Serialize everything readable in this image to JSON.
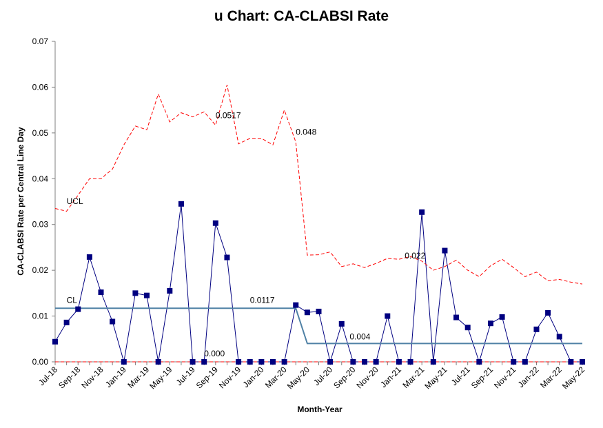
{
  "chart_data": {
    "type": "line",
    "title": "u Chart: CA-CLABSI Rate",
    "xlabel": "Month-Year",
    "ylabel": "CA-CLABSI Rate per Central Line Day",
    "ylim": [
      0,
      0.07
    ],
    "yticks": [
      "0.00",
      "0.01",
      "0.02",
      "0.03",
      "0.04",
      "0.05",
      "0.06",
      "0.07"
    ],
    "ytick_values": [
      0,
      0.01,
      0.02,
      0.03,
      0.04,
      0.05,
      0.06,
      0.07
    ],
    "categories": [
      "Jul-18",
      "Aug-18",
      "Sep-18",
      "Oct-18",
      "Nov-18",
      "Dec-18",
      "Jan-19",
      "Feb-19",
      "Mar-19",
      "Apr-19",
      "May-19",
      "Jun-19",
      "Jul-19",
      "Aug-19",
      "Sep-19",
      "Oct-19",
      "Nov-19",
      "Dec-19",
      "Jan-20",
      "Feb-20",
      "Mar-20",
      "Apr-20",
      "May-20",
      "Jun-20",
      "Jul-20",
      "Aug-20",
      "Sep-20",
      "Oct-20",
      "Nov-20",
      "Dec-20",
      "Jan-21",
      "Feb-21",
      "Mar-21",
      "Apr-21",
      "May-21",
      "Jun-21",
      "Jul-21",
      "Aug-21",
      "Sep-21",
      "Oct-21",
      "Nov-21",
      "Dec-21",
      "Jan-22",
      "Feb-22",
      "Mar-22",
      "Apr-22",
      "May-22"
    ],
    "tick_labels": [
      "Jul-18",
      "Sep-18",
      "Nov-18",
      "Jan-19",
      "Mar-19",
      "May-19",
      "Jul-19",
      "Sep-19",
      "Nov-19",
      "Jan-20",
      "Mar-20",
      "May-20",
      "Jul-20",
      "Sep-20",
      "Nov-20",
      "Jan-21",
      "Mar-21",
      "May-21",
      "Jul-21",
      "Sep-21",
      "Nov-21",
      "Jan-22",
      "Mar-22",
      "May-22"
    ],
    "series": [
      {
        "role": "rate",
        "color": "#000080",
        "values": [
          0.0044,
          0.0086,
          0.0115,
          0.0229,
          0.0152,
          0.0088,
          0.0,
          0.015,
          0.0145,
          0.0,
          0.0155,
          0.0345,
          0.0,
          0.0,
          0.0303,
          0.0228,
          0.0,
          0.0,
          0.0,
          0.0,
          0.0,
          0.0124,
          0.0108,
          0.011,
          0.0,
          0.0083,
          0.0,
          0.0,
          0.0,
          0.01,
          0.0,
          0.0,
          0.0327,
          0.0,
          0.0243,
          0.0097,
          0.0075,
          0.0,
          0.0084,
          0.0098,
          0.0,
          0.0,
          0.0071,
          0.0107,
          0.0055,
          0.0,
          0.0
        ]
      },
      {
        "role": "ucl",
        "name": "UCL",
        "color": "#ff0000",
        "values": [
          0.0335,
          0.0329,
          0.0364,
          0.04,
          0.04,
          0.0421,
          0.0474,
          0.0515,
          0.0507,
          0.0585,
          0.0524,
          0.0544,
          0.0535,
          0.0546,
          0.0517,
          0.0605,
          0.0476,
          0.0488,
          0.0488,
          0.0474,
          0.055,
          0.048,
          0.0233,
          0.0234,
          0.024,
          0.0208,
          0.0214,
          0.0206,
          0.0215,
          0.0226,
          0.0224,
          0.023,
          0.022,
          0.02,
          0.0208,
          0.0222,
          0.02,
          0.0186,
          0.021,
          0.0224,
          0.0206,
          0.0186,
          0.0196,
          0.0177,
          0.018,
          0.0174,
          0.017
        ]
      },
      {
        "role": "lcl",
        "color": "#ff0000",
        "values": [
          0,
          0,
          0,
          0,
          0,
          0,
          0,
          0,
          0,
          0,
          0,
          0,
          0,
          0,
          0,
          0,
          0,
          0,
          0,
          0,
          0,
          0,
          0,
          0,
          0,
          0,
          0,
          0,
          0,
          0,
          0,
          0,
          0,
          0,
          0,
          0,
          0,
          0,
          0,
          0,
          0,
          0,
          0,
          0,
          0,
          0,
          0
        ]
      },
      {
        "role": "cl",
        "name": "CL",
        "color": "#4f81a5",
        "values": [
          0.0117,
          0.0117,
          0.0117,
          0.0117,
          0.0117,
          0.0117,
          0.0117,
          0.0117,
          0.0117,
          0.0117,
          0.0117,
          0.0117,
          0.0117,
          0.0117,
          0.0117,
          0.0117,
          0.0117,
          0.0117,
          0.0117,
          0.0117,
          0.0117,
          0.0117,
          0.004,
          0.004,
          0.004,
          0.004,
          0.004,
          0.004,
          0.004,
          0.004,
          0.004,
          0.004,
          0.004,
          0.004,
          0.004,
          0.004,
          0.004,
          0.004,
          0.004,
          0.004,
          0.004,
          0.004,
          0.004,
          0.004,
          0.004,
          0.004,
          0.004
        ]
      }
    ],
    "annotations": [
      {
        "text": "UCL",
        "index": 1,
        "y": 0.0345
      },
      {
        "text": "CL",
        "index": 1,
        "y": 0.0129
      },
      {
        "text": "0.0517",
        "index": 14,
        "y": 0.0532
      },
      {
        "text": "0.048",
        "index": 21,
        "y": 0.0496
      },
      {
        "text": "0.0117",
        "index": 17,
        "y": 0.0129
      },
      {
        "text": "0.000",
        "index": 13,
        "y": 0.0012
      },
      {
        "text": "0.004",
        "index": 25.7,
        "y": 0.0049
      },
      {
        "text": "0.022",
        "index": 30.5,
        "y": 0.0226
      }
    ],
    "grid": false,
    "legend": "none"
  }
}
